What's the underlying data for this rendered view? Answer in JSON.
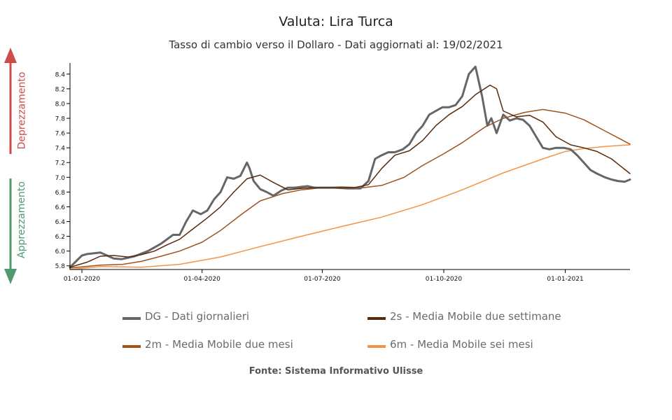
{
  "chart_data": {
    "type": "line",
    "title": "Valuta: Lira Turca",
    "subtitle": "Tasso di cambio verso il Dollaro - Dati aggiornati al: 19/02/2021",
    "source": "Fonte: Sistema Informativo Ulisse",
    "xlabel": "",
    "ylabel": "",
    "xlim": [
      "2019-12-23",
      "2021-02-19"
    ],
    "ylim": [
      5.75,
      8.55
    ],
    "x_ticks": [
      "01-01-2020",
      "01-04-2020",
      "01-07-2020",
      "01-10-2020",
      "01-01-2021"
    ],
    "y_ticks": [
      "5.8",
      "6.0",
      "6.2",
      "6.4",
      "6.6",
      "6.8",
      "7.0",
      "7.2",
      "7.4",
      "7.6",
      "7.8",
      "8.0",
      "8.2",
      "8.4"
    ],
    "side_labels": {
      "up": "Deprezzamento",
      "down": "Apprezzamento",
      "up_color": "#cc4b4b",
      "down_color": "#4f9a6e"
    },
    "legend_position": "bottom",
    "grid": false,
    "series": [
      {
        "name": "DG - Dati giornalieri",
        "color": "#666666",
        "width": 3,
        "x": [
          "2019-12-23",
          "2020-01-01",
          "2020-01-05",
          "2020-01-15",
          "2020-01-25",
          "2020-01-31",
          "2020-02-10",
          "2020-02-20",
          "2020-03-01",
          "2020-03-10",
          "2020-03-15",
          "2020-03-20",
          "2020-03-25",
          "2020-03-31",
          "2020-04-05",
          "2020-04-10",
          "2020-04-15",
          "2020-04-20",
          "2020-04-25",
          "2020-04-30",
          "2020-05-05",
          "2020-05-07",
          "2020-05-10",
          "2020-05-15",
          "2020-05-20",
          "2020-05-25",
          "2020-05-31",
          "2020-06-05",
          "2020-06-10",
          "2020-06-15",
          "2020-06-20",
          "2020-06-25",
          "2020-06-30",
          "2020-07-10",
          "2020-07-20",
          "2020-07-30",
          "2020-08-05",
          "2020-08-10",
          "2020-08-15",
          "2020-08-20",
          "2020-08-25",
          "2020-08-31",
          "2020-09-05",
          "2020-09-10",
          "2020-09-15",
          "2020-09-20",
          "2020-09-25",
          "2020-09-30",
          "2020-10-05",
          "2020-10-10",
          "2020-10-15",
          "2020-10-20",
          "2020-10-25",
          "2020-10-30",
          "2020-11-03",
          "2020-11-06",
          "2020-11-08",
          "2020-11-10",
          "2020-11-15",
          "2020-11-20",
          "2020-11-25",
          "2020-11-30",
          "2020-12-05",
          "2020-12-10",
          "2020-12-15",
          "2020-12-20",
          "2020-12-25",
          "2020-12-31",
          "2021-01-05",
          "2021-01-10",
          "2021-01-15",
          "2021-01-20",
          "2021-01-25",
          "2021-01-31",
          "2021-02-05",
          "2021-02-10",
          "2021-02-15",
          "2021-02-19"
        ],
        "values": [
          5.78,
          5.94,
          5.96,
          5.98,
          5.9,
          5.89,
          5.93,
          6.0,
          6.1,
          6.22,
          6.22,
          6.4,
          6.55,
          6.5,
          6.55,
          6.7,
          6.8,
          7.0,
          6.98,
          7.02,
          7.2,
          7.12,
          6.95,
          6.84,
          6.8,
          6.75,
          6.82,
          6.86,
          6.86,
          6.87,
          6.88,
          6.86,
          6.86,
          6.86,
          6.85,
          6.85,
          6.95,
          7.25,
          7.3,
          7.34,
          7.34,
          7.38,
          7.45,
          7.6,
          7.7,
          7.85,
          7.9,
          7.95,
          7.95,
          7.98,
          8.1,
          8.4,
          8.5,
          8.1,
          7.7,
          7.8,
          7.7,
          7.6,
          7.85,
          7.77,
          7.8,
          7.78,
          7.7,
          7.55,
          7.4,
          7.38,
          7.4,
          7.4,
          7.38,
          7.3,
          7.2,
          7.1,
          7.05,
          7.0,
          6.97,
          6.95,
          6.94,
          6.97
        ]
      },
      {
        "name": "2s - Media Mobile due settimane",
        "color": "#5a2a0a",
        "width": 1.5,
        "x": [
          "2019-12-23",
          "2020-01-05",
          "2020-01-15",
          "2020-01-25",
          "2020-02-05",
          "2020-02-15",
          "2020-02-25",
          "2020-03-05",
          "2020-03-15",
          "2020-03-25",
          "2020-04-05",
          "2020-04-15",
          "2020-04-25",
          "2020-05-05",
          "2020-05-15",
          "2020-05-25",
          "2020-06-05",
          "2020-06-15",
          "2020-06-25",
          "2020-07-05",
          "2020-07-15",
          "2020-07-25",
          "2020-08-05",
          "2020-08-15",
          "2020-08-25",
          "2020-09-05",
          "2020-09-15",
          "2020-09-25",
          "2020-10-05",
          "2020-10-15",
          "2020-10-25",
          "2020-11-05",
          "2020-11-10",
          "2020-11-15",
          "2020-11-25",
          "2020-12-05",
          "2020-12-15",
          "2020-12-25",
          "2021-01-05",
          "2021-01-15",
          "2021-01-25",
          "2021-02-05",
          "2021-02-19"
        ],
        "values": [
          5.78,
          5.85,
          5.93,
          5.94,
          5.92,
          5.95,
          6.0,
          6.08,
          6.16,
          6.3,
          6.45,
          6.6,
          6.8,
          6.98,
          7.03,
          6.93,
          6.83,
          6.85,
          6.86,
          6.86,
          6.86,
          6.86,
          6.9,
          7.12,
          7.3,
          7.36,
          7.5,
          7.7,
          7.85,
          7.96,
          8.12,
          8.25,
          8.2,
          7.9,
          7.82,
          7.84,
          7.75,
          7.55,
          7.44,
          7.4,
          7.35,
          7.25,
          7.05
        ]
      },
      {
        "name": "2m - Media Mobile due mesi",
        "color": "#a0521d",
        "width": 1.5,
        "x": [
          "2019-12-23",
          "2020-01-15",
          "2020-02-01",
          "2020-02-15",
          "2020-03-01",
          "2020-03-15",
          "2020-04-01",
          "2020-04-15",
          "2020-05-01",
          "2020-05-15",
          "2020-06-01",
          "2020-06-15",
          "2020-07-01",
          "2020-07-15",
          "2020-08-01",
          "2020-08-15",
          "2020-09-01",
          "2020-09-15",
          "2020-10-01",
          "2020-10-15",
          "2020-11-01",
          "2020-11-15",
          "2020-12-01",
          "2020-12-15",
          "2021-01-01",
          "2021-01-15",
          "2021-02-01",
          "2021-02-19"
        ],
        "values": [
          5.77,
          5.81,
          5.82,
          5.86,
          5.93,
          6.0,
          6.12,
          6.28,
          6.5,
          6.68,
          6.78,
          6.83,
          6.86,
          6.87,
          6.86,
          6.89,
          7.0,
          7.16,
          7.32,
          7.47,
          7.68,
          7.8,
          7.88,
          7.92,
          7.87,
          7.78,
          7.62,
          7.45
        ]
      },
      {
        "name": "6m - Media Mobile sei mesi",
        "color": "#f29447",
        "width": 1.5,
        "x": [
          "2019-12-23",
          "2020-01-15",
          "2020-02-15",
          "2020-03-15",
          "2020-04-15",
          "2020-05-15",
          "2020-06-15",
          "2020-07-15",
          "2020-08-15",
          "2020-09-15",
          "2020-10-15",
          "2020-11-15",
          "2020-12-15",
          "2021-01-01",
          "2021-01-15",
          "2021-02-01",
          "2021-02-19"
        ],
        "values": [
          5.75,
          5.79,
          5.78,
          5.82,
          5.92,
          6.06,
          6.2,
          6.33,
          6.46,
          6.63,
          6.83,
          7.06,
          7.25,
          7.35,
          7.39,
          7.42,
          7.44
        ]
      }
    ]
  }
}
